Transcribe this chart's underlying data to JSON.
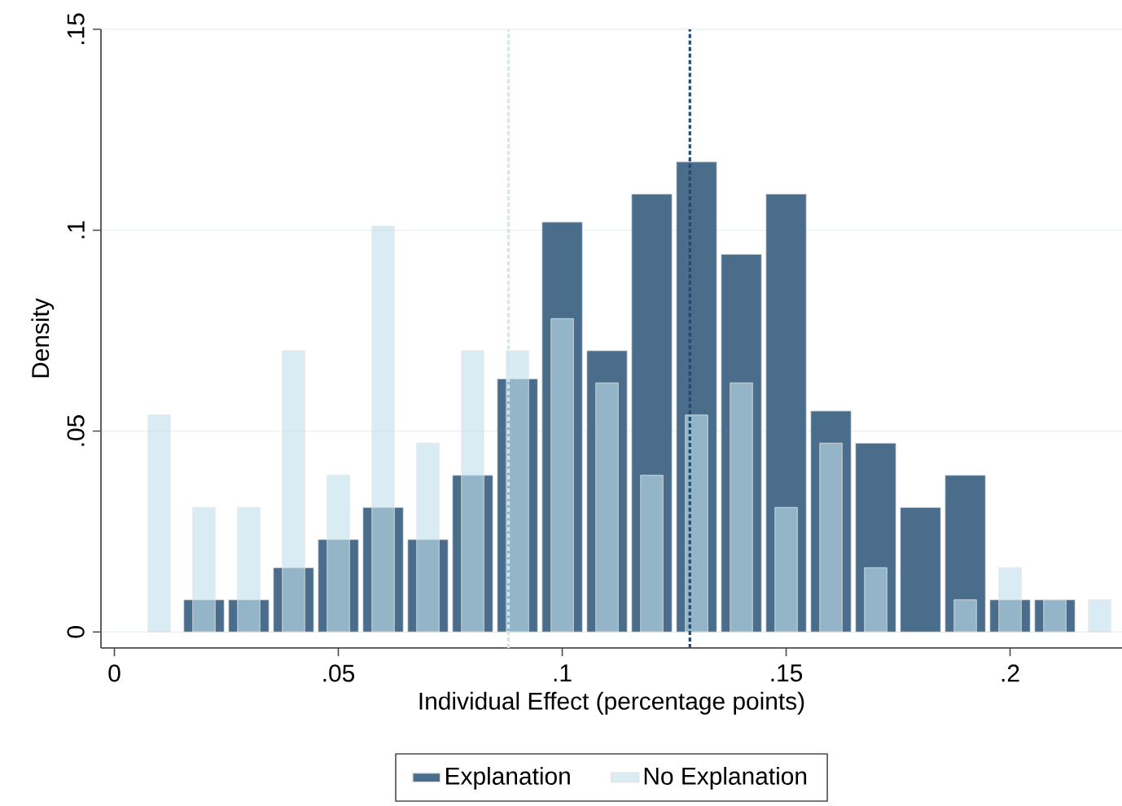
{
  "chart_data": {
    "type": "histogram",
    "xlabel": "Individual Effect (percentage points)",
    "ylabel": "Density",
    "bins": [
      0.005,
      0.015,
      0.025,
      0.035,
      0.045,
      0.055,
      0.065,
      0.075,
      0.085,
      0.095,
      0.105,
      0.115,
      0.125,
      0.135,
      0.145,
      0.155,
      0.165,
      0.175,
      0.185,
      0.195,
      0.205,
      0.215,
      0.225
    ],
    "series": [
      {
        "name": "Explanation",
        "color": "#4a6d8c",
        "values": [
          0,
          0.008,
          0.008,
          0.016,
          0.023,
          0.031,
          0.023,
          0.039,
          0.063,
          0.102,
          0.07,
          0.109,
          0.117,
          0.094,
          0.109,
          0.055,
          0.047,
          0.031,
          0.039,
          0.008,
          0.008,
          0
        ]
      },
      {
        "name": "No Explanation",
        "color": "#c2e0ec",
        "values": [
          0.054,
          0.031,
          0.031,
          0.07,
          0.039,
          0.101,
          0.047,
          0.07,
          0.07,
          0.078,
          0.062,
          0.039,
          0.054,
          0.062,
          0.031,
          0.047,
          0.016,
          0,
          0.008,
          0.016,
          0.008,
          0.008
        ]
      }
    ],
    "xlim": [
      -0.003,
      0.225
    ],
    "ylim": [
      -0.004,
      0.15
    ],
    "xticks": [
      0,
      {
        "value": 0.05,
        "label": ".05"
      },
      {
        "value": 0.1,
        "label": ".1"
      },
      {
        "value": 0.15,
        "label": ".15"
      },
      {
        "value": 0.2,
        "label": ".2"
      }
    ],
    "yticks": [
      0,
      {
        "value": 0.05,
        "label": ".05"
      },
      {
        "value": 0.1,
        "label": ".1"
      },
      {
        "value": 0.15,
        "label": ".15"
      }
    ],
    "ref_lines": [
      {
        "axis": "x",
        "value": 0.088,
        "color": "#cfe6f0",
        "line_style": "dotted"
      },
      {
        "axis": "x",
        "value": 0.1285,
        "color": "#1f4a70",
        "line_style": "dotted"
      }
    ],
    "grid": "y",
    "legend": "bottom"
  }
}
